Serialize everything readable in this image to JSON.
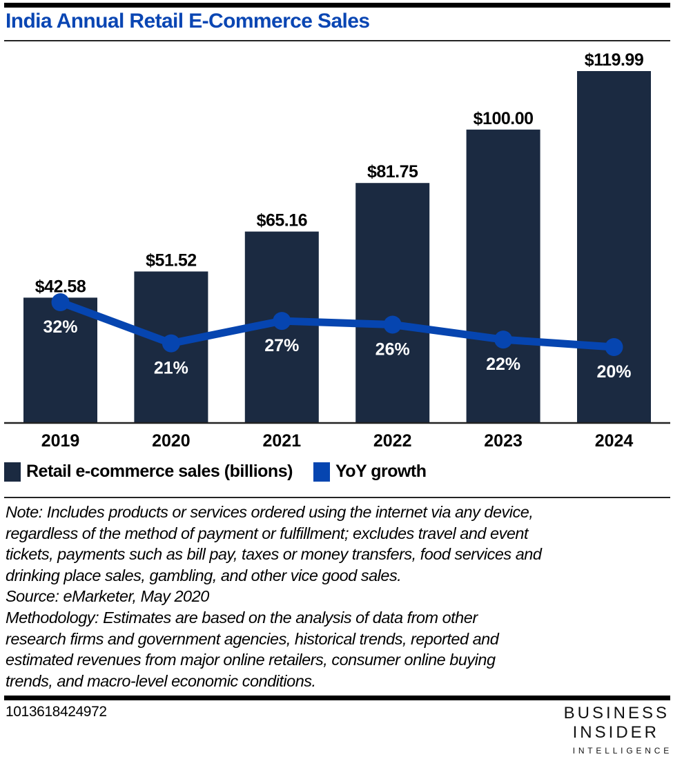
{
  "title": "India Annual Retail E-Commerce Sales",
  "colors": {
    "title": "#0a46b3",
    "bar": "#1b2a41",
    "line": "#0645b0",
    "text": "#000000"
  },
  "chart_data": {
    "type": "bar",
    "title": "India Annual Retail E-Commerce Sales",
    "xlabel": "",
    "ylabel": "",
    "categories": [
      "2019",
      "2020",
      "2021",
      "2022",
      "2023",
      "2024"
    ],
    "series": [
      {
        "name": "Retail e-commerce sales (billions)",
        "type": "bar",
        "values": [
          42.58,
          51.52,
          65.16,
          81.75,
          100.0,
          119.99
        ],
        "labels": [
          "$42.58",
          "$51.52",
          "$65.16",
          "$81.75",
          "$100.00",
          "$119.99"
        ]
      },
      {
        "name": "YoY growth",
        "type": "line",
        "values": [
          32,
          21,
          27,
          26,
          22,
          20
        ],
        "labels": [
          "32%",
          "21%",
          "27%",
          "26%",
          "22%",
          "20%"
        ]
      }
    ],
    "ylim": [
      0,
      120
    ],
    "grid": false,
    "legend_position": "bottom-left"
  },
  "legend": [
    {
      "label": "Retail e-commerce sales (billions)"
    },
    {
      "label": "YoY growth"
    }
  ],
  "notes": {
    "note_lines": [
      "Note: Includes products or services ordered using the internet via any device,",
      "regardless of the method of payment or fulfillment; excludes travel and event",
      "tickets, payments such as bill pay, taxes or money transfers, food services and",
      "drinking place sales, gambling, and other vice good sales."
    ],
    "source": "Source: eMarketer, May 2020",
    "methodology_lines": [
      "Methodology: Estimates are based on the analysis of data from other",
      "research firms and government agencies, historical trends, reported and",
      "estimated revenues from major online retailers, consumer online buying",
      "trends, and macro-level economic conditions."
    ]
  },
  "footer": {
    "chart_id": "1013618424972",
    "logo_line1": "BUSINESS",
    "logo_line2": "INSIDER",
    "logo_line3": "INTELLIGENCE"
  }
}
